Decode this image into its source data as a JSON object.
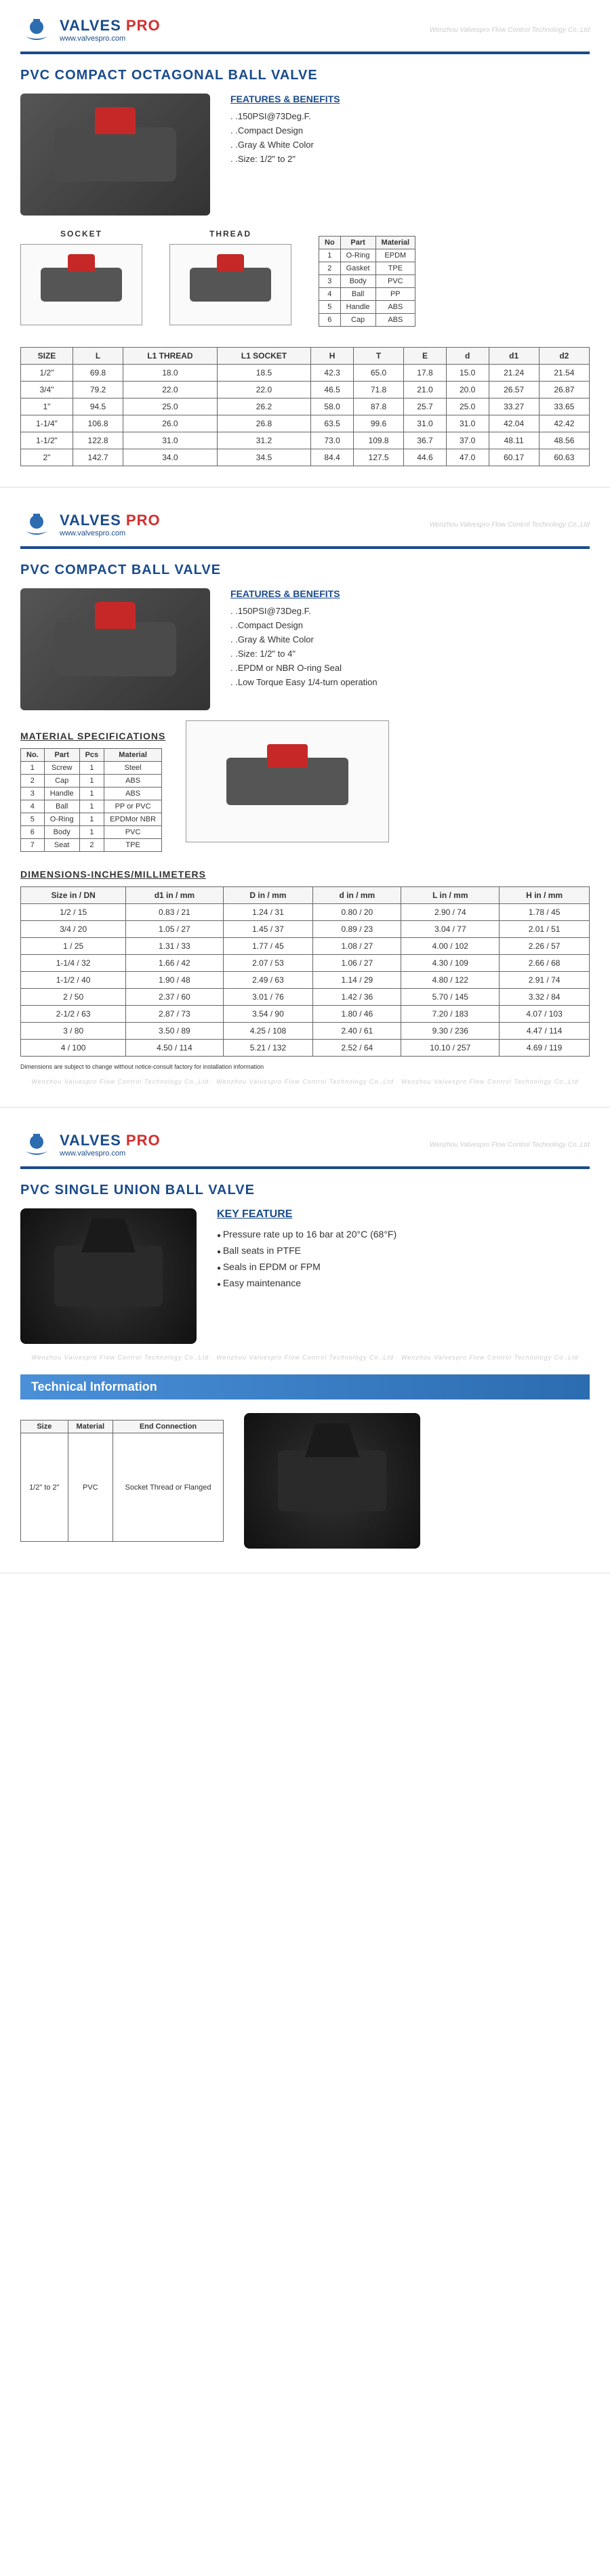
{
  "brand": {
    "name_main": "VALVES",
    "name_accent": "PRO",
    "url": "www.valvespro.com",
    "watermark": "Wenzhou Valvespro Flow Control Technology Co.,Ltd"
  },
  "page1": {
    "title": "PVC COMPACT OCTAGONAL BALL VALVE",
    "features_title": "FEATURES & BENEFITS",
    "features": [
      ".150PSI@73Deg.F.",
      ".Compact Design",
      ".Gray & White Color",
      ".Size: 1/2\" to 2\""
    ],
    "diag_labels": [
      "SOCKET",
      "THREAD"
    ],
    "parts_table": {
      "headers": [
        "No",
        "Part",
        "Material"
      ],
      "rows": [
        [
          "1",
          "O-Ring",
          "EPDM"
        ],
        [
          "2",
          "Gasket",
          "TPE"
        ],
        [
          "3",
          "Body",
          "PVC"
        ],
        [
          "4",
          "Ball",
          "PP"
        ],
        [
          "5",
          "Handle",
          "ABS"
        ],
        [
          "6",
          "Cap",
          "ABS"
        ]
      ]
    },
    "dim_table": {
      "headers": [
        "SIZE",
        "L",
        "L1 THREAD",
        "L1 SOCKET",
        "H",
        "T",
        "E",
        "d",
        "d1",
        "d2"
      ],
      "rows": [
        [
          "1/2\"",
          "69.8",
          "18.0",
          "18.5",
          "42.3",
          "65.0",
          "17.8",
          "15.0",
          "21.24",
          "21.54"
        ],
        [
          "3/4\"",
          "79.2",
          "22.0",
          "22.0",
          "46.5",
          "71.8",
          "21.0",
          "20.0",
          "26.57",
          "26.87"
        ],
        [
          "1\"",
          "94.5",
          "25.0",
          "26.2",
          "58.0",
          "87.8",
          "25.7",
          "25.0",
          "33.27",
          "33.65"
        ],
        [
          "1-1/4\"",
          "106.8",
          "26.0",
          "26.8",
          "63.5",
          "99.6",
          "31.0",
          "31.0",
          "42.04",
          "42.42"
        ],
        [
          "1-1/2\"",
          "122.8",
          "31.0",
          "31.2",
          "73.0",
          "109.8",
          "36.7",
          "37.0",
          "48.11",
          "48.56"
        ],
        [
          "2\"",
          "142.7",
          "34.0",
          "34.5",
          "84.4",
          "127.5",
          "44.6",
          "47.0",
          "60.17",
          "60.63"
        ]
      ]
    }
  },
  "page2": {
    "title": "PVC COMPACT BALL VALVE",
    "features_title": "FEATURES & BENEFITS",
    "features": [
      ".150PSI@73Deg.F.",
      ".Compact Design",
      ".Gray & White Color",
      ".Size: 1/2\" to 4\"",
      ".EPDM or NBR O-ring Seal",
      ".Low Torque Easy 1/4-turn operation"
    ],
    "mat_title": "MATERIAL SPECIFICATIONS",
    "mat_table": {
      "headers": [
        "No.",
        "Part",
        "Pcs",
        "Material"
      ],
      "rows": [
        [
          "1",
          "Screw",
          "1",
          "Steel"
        ],
        [
          "2",
          "Cap",
          "1",
          "ABS"
        ],
        [
          "3",
          "Handle",
          "1",
          "ABS"
        ],
        [
          "4",
          "Ball",
          "1",
          "PP or PVC"
        ],
        [
          "5",
          "O-Ring",
          "1",
          "EPDMor NBR"
        ],
        [
          "6",
          "Body",
          "1",
          "PVC"
        ],
        [
          "7",
          "Seat",
          "2",
          "TPE"
        ]
      ]
    },
    "dim_title": "DIMENSIONS-INCHES/MILLIMETERS",
    "dim_table": {
      "headers": [
        "Size in / DN",
        "d1 in / mm",
        "D in / mm",
        "d in / mm",
        "L in / mm",
        "H in / mm"
      ],
      "rows": [
        [
          "1/2 / 15",
          "0.83 / 21",
          "1.24 / 31",
          "0.80 / 20",
          "2.90 / 74",
          "1.78 / 45"
        ],
        [
          "3/4 / 20",
          "1.05 / 27",
          "1.45 / 37",
          "0.89 / 23",
          "3.04 / 77",
          "2.01 / 51"
        ],
        [
          "1 / 25",
          "1.31 / 33",
          "1.77 / 45",
          "1.08 / 27",
          "4.00 / 102",
          "2.26 / 57"
        ],
        [
          "1-1/4 / 32",
          "1.66 / 42",
          "2.07 / 53",
          "1.06 / 27",
          "4.30 / 109",
          "2.66 / 68"
        ],
        [
          "1-1/2 / 40",
          "1.90 / 48",
          "2.49 / 63",
          "1.14 / 29",
          "4.80 / 122",
          "2.91 / 74"
        ],
        [
          "2 / 50",
          "2.37 / 60",
          "3.01 / 76",
          "1.42 / 36",
          "5.70 / 145",
          "3.32 / 84"
        ],
        [
          "2-1/2 / 63",
          "2.87 / 73",
          "3.54 / 90",
          "1.80 / 46",
          "7.20 / 183",
          "4.07 / 103"
        ],
        [
          "3 / 80",
          "3.50 / 89",
          "4.25 / 108",
          "2.40 / 61",
          "9.30 / 236",
          "4.47 / 114"
        ],
        [
          "4 / 100",
          "4.50 / 114",
          "5.21 / 132",
          "2.52 / 64",
          "10.10 / 257",
          "4.69 / 119"
        ]
      ]
    },
    "footnote": "Dimensions are subject to change without notice-consult factory for installation information"
  },
  "page3": {
    "title": "PVC SINGLE UNION BALL VALVE",
    "key_title": "KEY FEATURE",
    "key_features": [
      "Pressure rate up to 16 bar at 20°C (68°F)",
      "Ball seats in PTFE",
      "Seals in EPDM or FPM",
      "Easy maintenance"
    ],
    "tech_banner": "Technical Information",
    "tech_table": {
      "headers": [
        "Size",
        "Material",
        "End Connection"
      ],
      "rows": [
        [
          "1/2\" to 2\"",
          "PVC",
          "Socket Thread or Flanged"
        ]
      ]
    }
  }
}
